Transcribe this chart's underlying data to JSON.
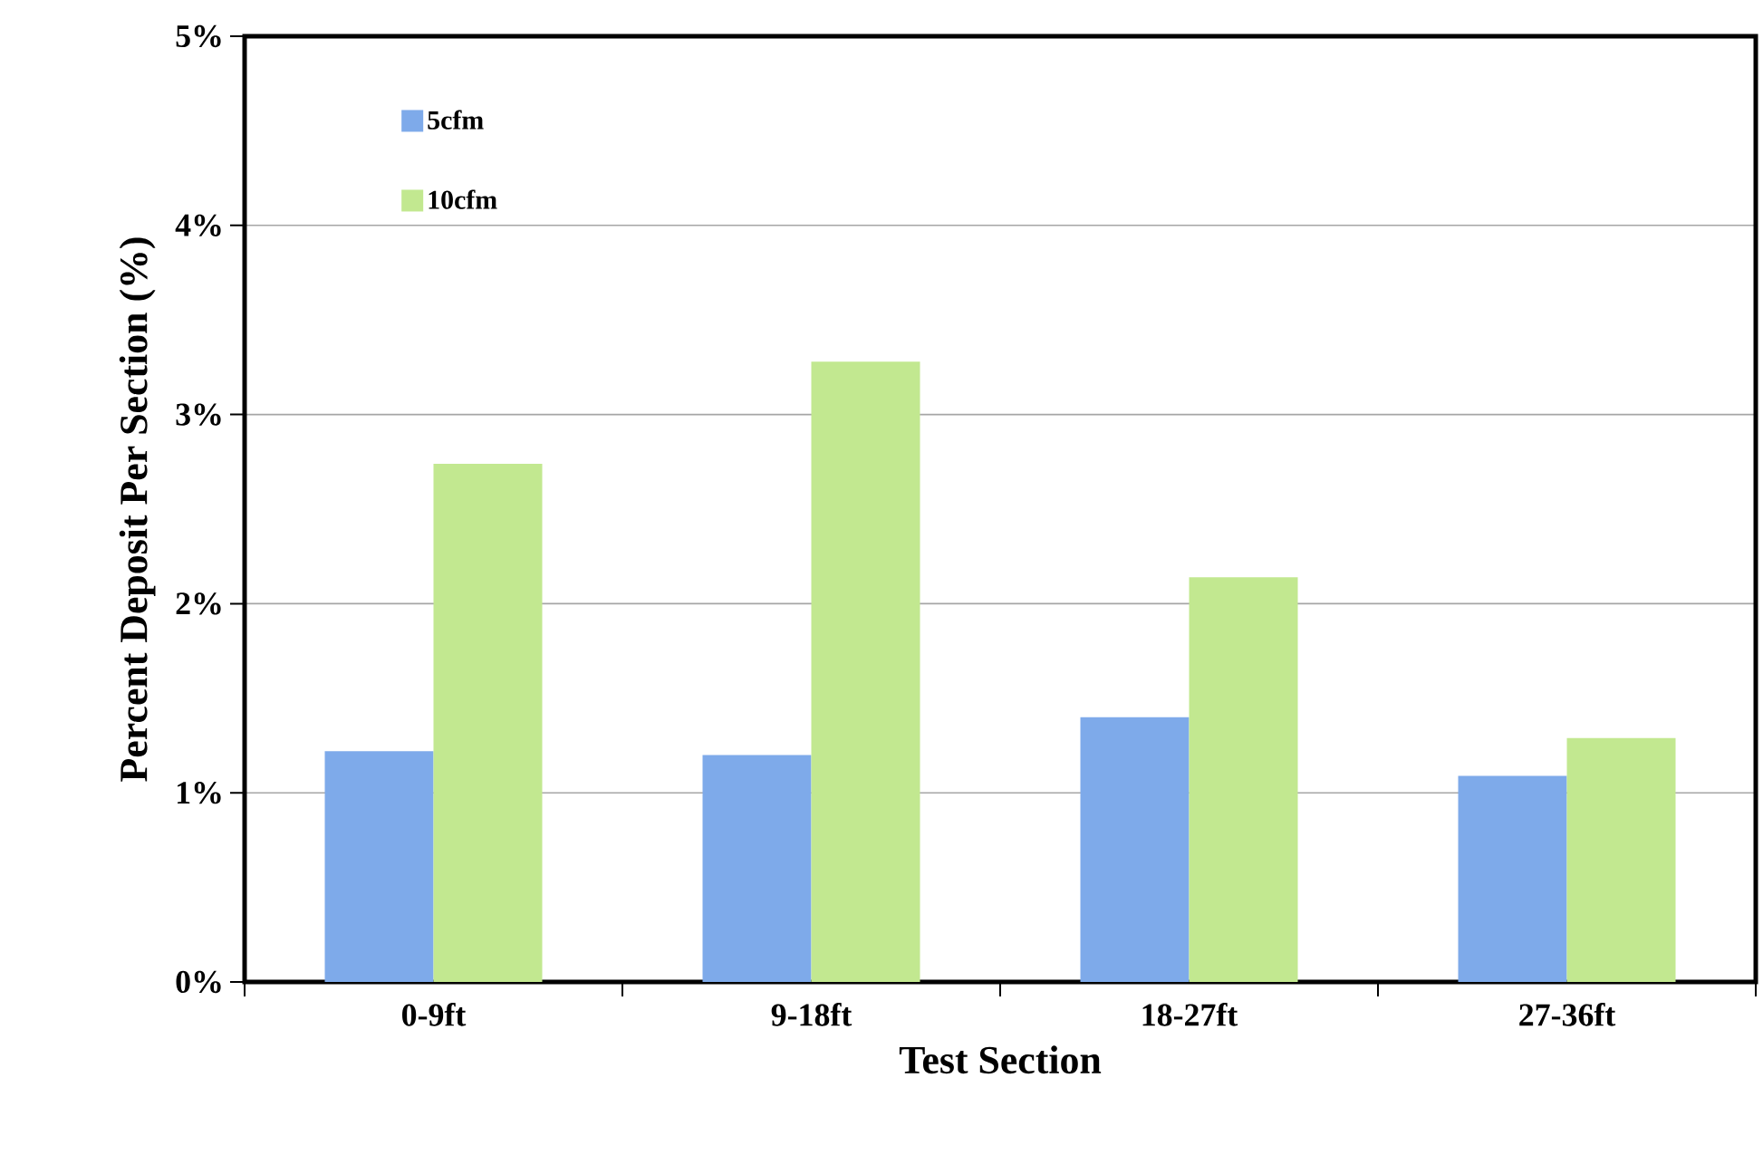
{
  "chart_data": {
    "type": "bar",
    "xlabel": "Test Section",
    "ylabel": "Percent Deposit Per Section (%)",
    "categories": [
      "0-9ft",
      "9-18ft",
      "18-27ft",
      "27-36ft"
    ],
    "series": [
      {
        "name": "5cfm",
        "color": "#7eaaea",
        "values": [
          1.22,
          1.2,
          1.4,
          1.09
        ]
      },
      {
        "name": "10cfm",
        "color": "#c2e890",
        "values": [
          2.74,
          3.28,
          2.14,
          1.29
        ]
      }
    ],
    "ylim": [
      0,
      5
    ],
    "yticks": [
      {
        "value": 0,
        "label": "0%"
      },
      {
        "value": 1,
        "label": "1%"
      },
      {
        "value": 2,
        "label": "2%"
      },
      {
        "value": 3,
        "label": "3%"
      },
      {
        "value": 4,
        "label": "4%"
      },
      {
        "value": 5,
        "label": "5%"
      }
    ],
    "grid": "y",
    "legend": "top left"
  }
}
